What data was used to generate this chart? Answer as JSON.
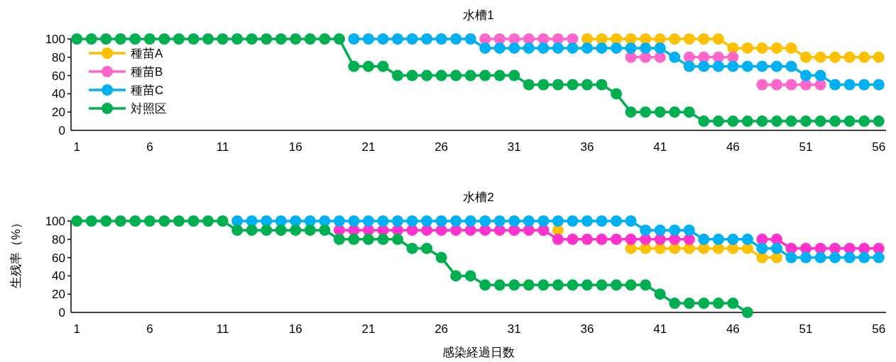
{
  "chart_data": [
    {
      "type": "line",
      "title": "水槽1",
      "x": [
        1,
        2,
        3,
        4,
        5,
        6,
        7,
        8,
        9,
        10,
        11,
        12,
        13,
        14,
        15,
        16,
        17,
        18,
        19,
        20,
        21,
        22,
        23,
        24,
        25,
        26,
        27,
        28,
        29,
        30,
        31,
        32,
        33,
        34,
        35,
        36,
        37,
        38,
        39,
        40,
        41,
        42,
        43,
        44,
        45,
        46,
        47,
        48,
        49,
        50,
        51,
        52,
        53,
        54,
        55,
        56
      ],
      "xlim": [
        0.6,
        56.5
      ],
      "xticks": [
        1,
        6,
        11,
        16,
        21,
        26,
        31,
        36,
        41,
        46,
        51,
        56
      ],
      "ylim": [
        0,
        100
      ],
      "yticks": [
        0,
        20,
        40,
        60,
        80,
        100
      ],
      "grid": false,
      "legend": "top left",
      "marker": "circle",
      "line_style": "solid",
      "series": [
        {
          "name": "種苗A",
          "color": "#ffc000",
          "values": [
            null,
            null,
            null,
            null,
            null,
            null,
            null,
            null,
            null,
            null,
            null,
            null,
            null,
            null,
            null,
            null,
            null,
            null,
            null,
            null,
            null,
            null,
            null,
            null,
            null,
            null,
            null,
            null,
            null,
            null,
            null,
            null,
            null,
            null,
            null,
            100,
            100,
            100,
            100,
            100,
            100,
            100,
            100,
            100,
            100,
            90,
            90,
            90,
            90,
            90,
            80,
            80,
            80,
            80,
            80,
            80
          ]
        },
        {
          "name": "種苗B",
          "color": "#ff66cc",
          "values": [
            null,
            null,
            null,
            null,
            null,
            null,
            null,
            null,
            null,
            null,
            null,
            null,
            null,
            null,
            null,
            null,
            null,
            null,
            null,
            null,
            null,
            null,
            null,
            null,
            null,
            null,
            null,
            null,
            100,
            100,
            100,
            100,
            100,
            100,
            100,
            null,
            null,
            null,
            80,
            80,
            80,
            null,
            80,
            80,
            80,
            80,
            null,
            50,
            50,
            50,
            50,
            50,
            null,
            null,
            null,
            null
          ]
        },
        {
          "name": "種苗C",
          "color": "#00b0f0",
          "values": [
            null,
            null,
            null,
            null,
            null,
            null,
            null,
            null,
            null,
            null,
            null,
            null,
            null,
            null,
            null,
            null,
            null,
            null,
            null,
            100,
            100,
            100,
            100,
            100,
            100,
            100,
            100,
            100,
            90,
            90,
            90,
            90,
            90,
            90,
            90,
            90,
            90,
            90,
            90,
            90,
            90,
            80,
            70,
            70,
            70,
            70,
            70,
            70,
            70,
            70,
            60,
            60,
            50,
            50,
            50,
            50
          ]
        },
        {
          "name": "対照区",
          "color": "#00b050",
          "values": [
            100,
            100,
            100,
            100,
            100,
            100,
            100,
            100,
            100,
            100,
            100,
            100,
            100,
            100,
            100,
            100,
            100,
            100,
            100,
            70,
            70,
            70,
            60,
            60,
            60,
            60,
            60,
            60,
            60,
            60,
            60,
            50,
            50,
            50,
            50,
            50,
            50,
            40,
            20,
            20,
            20,
            20,
            20,
            10,
            10,
            10,
            10,
            10,
            10,
            10,
            10,
            10,
            10,
            10,
            10,
            10
          ]
        }
      ]
    },
    {
      "type": "line",
      "title": "水槽2",
      "xlabel": "感染経過日数",
      "ylabel": "生残率（%）",
      "x": [
        1,
        2,
        3,
        4,
        5,
        6,
        7,
        8,
        9,
        10,
        11,
        12,
        13,
        14,
        15,
        16,
        17,
        18,
        19,
        20,
        21,
        22,
        23,
        24,
        25,
        26,
        27,
        28,
        29,
        30,
        31,
        32,
        33,
        34,
        35,
        36,
        37,
        38,
        39,
        40,
        41,
        42,
        43,
        44,
        45,
        46,
        47,
        48,
        49,
        50,
        51,
        52,
        53,
        54,
        55,
        56
      ],
      "xlim": [
        0.6,
        56.5
      ],
      "xticks": [
        1,
        6,
        11,
        16,
        21,
        26,
        31,
        36,
        41,
        46,
        51,
        56
      ],
      "ylim": [
        0,
        100
      ],
      "yticks": [
        0,
        20,
        40,
        60,
        80,
        100
      ],
      "grid": false,
      "legend": false,
      "marker": "circle",
      "line_style": "solid",
      "series": [
        {
          "color": "#ffc000",
          "values": [
            null,
            null,
            null,
            null,
            null,
            null,
            null,
            null,
            null,
            null,
            null,
            null,
            null,
            null,
            null,
            null,
            null,
            null,
            null,
            null,
            null,
            null,
            null,
            null,
            null,
            null,
            null,
            null,
            null,
            null,
            null,
            null,
            null,
            90,
            null,
            null,
            null,
            null,
            70,
            70,
            70,
            70,
            70,
            70,
            70,
            70,
            70,
            60,
            60,
            null,
            null,
            null,
            null,
            null,
            null,
            null
          ]
        },
        {
          "color": "#ff33cc",
          "values": [
            null,
            null,
            null,
            null,
            null,
            null,
            null,
            null,
            null,
            null,
            null,
            null,
            null,
            null,
            null,
            null,
            null,
            null,
            90,
            90,
            90,
            90,
            90,
            90,
            90,
            90,
            90,
            90,
            90,
            90,
            90,
            90,
            90,
            80,
            80,
            80,
            80,
            80,
            80,
            80,
            80,
            80,
            80,
            null,
            null,
            null,
            null,
            80,
            80,
            70,
            70,
            70,
            70,
            70,
            70,
            70
          ]
        },
        {
          "color": "#00b0f0",
          "values": [
            null,
            null,
            null,
            null,
            null,
            null,
            null,
            null,
            null,
            null,
            null,
            100,
            100,
            100,
            100,
            100,
            100,
            100,
            100,
            100,
            100,
            100,
            100,
            100,
            100,
            100,
            100,
            100,
            100,
            100,
            100,
            100,
            100,
            100,
            100,
            100,
            100,
            100,
            100,
            90,
            90,
            90,
            90,
            80,
            80,
            80,
            80,
            70,
            70,
            60,
            60,
            60,
            60,
            60,
            60,
            60
          ]
        },
        {
          "color": "#00b050",
          "values": [
            100,
            100,
            100,
            100,
            100,
            100,
            100,
            100,
            100,
            100,
            100,
            90,
            90,
            90,
            90,
            90,
            90,
            90,
            80,
            80,
            80,
            80,
            80,
            70,
            70,
            60,
            40,
            40,
            30,
            30,
            30,
            30,
            30,
            30,
            30,
            30,
            30,
            30,
            30,
            30,
            20,
            10,
            10,
            10,
            10,
            10,
            0,
            null,
            null,
            null,
            null,
            null,
            null,
            null,
            null,
            null
          ]
        }
      ]
    }
  ]
}
